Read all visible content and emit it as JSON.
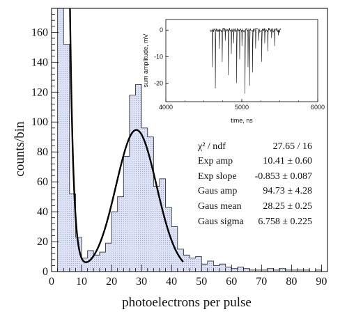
{
  "chart_data": [
    {
      "type": "bar",
      "xlabel": "photoelectrons per pulse",
      "ylabel": "counts/bin",
      "xlim": [
        0,
        92
      ],
      "ylim": [
        0,
        176
      ],
      "x_ticks": [
        0,
        10,
        20,
        30,
        40,
        50,
        60,
        70,
        80,
        90
      ],
      "y_ticks": [
        0,
        20,
        40,
        60,
        80,
        100,
        120,
        140,
        160
      ],
      "histogram": {
        "bin_width": 2,
        "bin_starts": [
          2,
          4,
          6,
          8,
          10,
          12,
          14,
          16,
          18,
          20,
          22,
          24,
          26,
          28,
          30,
          32,
          34,
          36,
          38,
          40,
          42,
          44,
          46,
          48,
          50,
          52,
          54,
          56,
          58,
          60,
          62,
          64,
          66,
          68,
          70,
          72,
          74,
          76,
          78,
          80,
          82,
          84,
          86,
          88
        ],
        "counts": [
          176,
          152,
          52,
          23,
          9,
          14,
          11,
          13,
          19,
          40,
          50,
          77,
          118,
          125,
          96,
          90,
          57,
          62,
          43,
          30,
          15,
          11,
          9,
          10,
          5,
          7,
          4,
          5,
          3,
          2,
          3,
          2,
          1,
          1,
          1,
          2,
          1,
          2,
          1,
          1,
          1,
          1,
          0,
          1
        ],
        "fill_color": "#dde2f5"
      },
      "fit": {
        "function": "Exp + Gaus",
        "x_range": [
          2,
          44
        ],
        "color": "#000000"
      },
      "stats_box": {
        "rows": [
          {
            "label": "χ² / ndf",
            "value": "27.65 / 16"
          },
          {
            "label": "Exp amp",
            "value": "10.41 ± 0.60"
          },
          {
            "label": "Exp slope",
            "value": "-0.853 ± 0.087"
          },
          {
            "label": "Gaus amp",
            "value": "94.73 ± 4.28"
          },
          {
            "label": "Gaus mean",
            "value": "28.25 ± 0.25"
          },
          {
            "label": "Gaus sigma",
            "value": "6.758 ± 0.225"
          }
        ],
        "params": {
          "exp_amp": 10.41,
          "exp_slope": -0.853,
          "gaus_amp": 94.73,
          "gaus_mean": 28.25,
          "gaus_sigma": 6.758
        }
      }
    },
    {
      "type": "line",
      "xlabel": "time, ns",
      "ylabel": "sum amplitude, mV",
      "xlim": [
        4000,
        6000
      ],
      "ylim": [
        -27,
        4
      ],
      "x_ticks": [
        4000,
        5000,
        6000
      ],
      "y_ticks": [
        0,
        -10,
        -20
      ],
      "pulses": [
        {
          "t": 4610,
          "a": -14
        },
        {
          "t": 4650,
          "a": -22
        },
        {
          "t": 4700,
          "a": -7
        },
        {
          "t": 4740,
          "a": -12
        },
        {
          "t": 4780,
          "a": -4
        },
        {
          "t": 4820,
          "a": -17
        },
        {
          "t": 4860,
          "a": -9
        },
        {
          "t": 4890,
          "a": -5
        },
        {
          "t": 4930,
          "a": -20
        },
        {
          "t": 4970,
          "a": -11
        },
        {
          "t": 5000,
          "a": -6
        },
        {
          "t": 5040,
          "a": -24
        },
        {
          "t": 5080,
          "a": -14
        },
        {
          "t": 5100,
          "a": -21
        },
        {
          "t": 5140,
          "a": -16
        },
        {
          "t": 5180,
          "a": -7
        },
        {
          "t": 5220,
          "a": -4
        },
        {
          "t": 5260,
          "a": -12
        },
        {
          "t": 5300,
          "a": -5
        },
        {
          "t": 5340,
          "a": -8
        },
        {
          "t": 5390,
          "a": -3
        },
        {
          "t": 5430,
          "a": -6
        },
        {
          "t": 5480,
          "a": -2
        }
      ],
      "t_start": 4580,
      "t_end": 5520
    }
  ]
}
